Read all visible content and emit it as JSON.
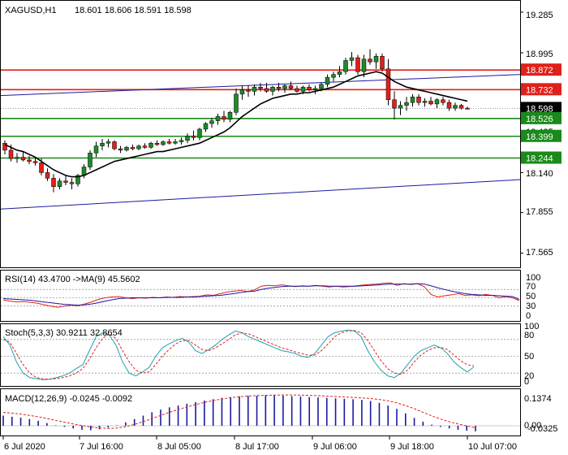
{
  "header": {
    "symbol_timeframe": "XAGUSD,H1",
    "ohlc": "18.601 18.606 18.591 18.598"
  },
  "colors": {
    "bull": "#1e8a2a",
    "bear": "#e0201a",
    "ma": "#000000",
    "resistance": "#e0201a",
    "support": "#1a8a1a",
    "channel": "#1a1aa0",
    "rsi": "#e0201a",
    "rsi_ma": "#1a1aa0",
    "stoch_main": "#20a0b0",
    "stoch_signal": "#e0201a",
    "macd_hist": "#1a1aa0",
    "macd_signal": "#e0201a",
    "current_label_bg": "#000000"
  },
  "price_panel": {
    "axis_labels": [
      "19.285",
      "18.995",
      "18.425",
      "18.140",
      "17.855",
      "17.565"
    ],
    "level_labels": [
      {
        "text": "18.872",
        "value": 18.872,
        "kind": "resistance"
      },
      {
        "text": "18.732",
        "value": 18.732,
        "kind": "resistance"
      },
      {
        "text": "18.598",
        "value": 18.598,
        "kind": "current"
      },
      {
        "text": "18.526",
        "value": 18.526,
        "kind": "support"
      },
      {
        "text": "18.399",
        "value": 18.399,
        "kind": "support"
      },
      {
        "text": "18.244",
        "value": 18.244,
        "kind": "support"
      }
    ]
  },
  "rsi_panel": {
    "label": "RSI(14) 43.4700  ->MA(9) 45.5602",
    "axis_labels": [
      "100",
      "70",
      "50",
      "30",
      "0"
    ]
  },
  "stoch_panel": {
    "label": "Stoch(5,3,3) 30.9211 32.8654",
    "axis_labels": [
      "100",
      "80",
      "50",
      "20",
      "0"
    ]
  },
  "macd_panel": {
    "label": "MACD(12,26,9) -0.0245 -0.0092",
    "axis_labels": [
      "0.1374",
      "0.00",
      "-0.0325"
    ]
  },
  "time_axis": [
    "6 Jul 2020",
    "7 Jul 16:00",
    "8 Jul 05:00",
    "8 Jul 17:00",
    "9 Jul 06:00",
    "9 Jul 18:00",
    "10 Jul 07:00"
  ],
  "chart_data": {
    "type": "candlestick",
    "y_axis_range": [
      17.47,
      19.36
    ],
    "candles": [
      [
        18.35,
        18.37,
        18.27,
        18.3
      ],
      [
        18.3,
        18.34,
        18.22,
        18.24
      ],
      [
        18.24,
        18.28,
        18.21,
        18.25
      ],
      [
        18.25,
        18.29,
        18.22,
        18.23
      ],
      [
        18.23,
        18.26,
        18.2,
        18.22
      ],
      [
        18.22,
        18.25,
        18.19,
        18.21
      ],
      [
        18.21,
        18.24,
        18.12,
        18.14
      ],
      [
        18.14,
        18.17,
        18.08,
        18.1
      ],
      [
        18.1,
        18.13,
        18.0,
        18.04
      ],
      [
        18.04,
        18.1,
        18.02,
        18.08
      ],
      [
        18.08,
        18.12,
        18.05,
        18.07
      ],
      [
        18.07,
        18.1,
        18.02,
        18.06
      ],
      [
        18.06,
        18.13,
        18.04,
        18.12
      ],
      [
        18.12,
        18.2,
        18.1,
        18.18
      ],
      [
        18.18,
        18.3,
        18.16,
        18.28
      ],
      [
        18.28,
        18.36,
        18.25,
        18.33
      ],
      [
        18.33,
        18.38,
        18.3,
        18.35
      ],
      [
        18.35,
        18.38,
        18.32,
        18.36
      ],
      [
        18.36,
        18.37,
        18.3,
        18.31
      ],
      [
        18.31,
        18.33,
        18.28,
        18.3
      ],
      [
        18.3,
        18.33,
        18.29,
        18.32
      ],
      [
        18.32,
        18.34,
        18.3,
        18.31
      ],
      [
        18.31,
        18.34,
        18.3,
        18.33
      ],
      [
        18.33,
        18.35,
        18.31,
        18.32
      ],
      [
        18.32,
        18.36,
        18.31,
        18.35
      ],
      [
        18.35,
        18.37,
        18.33,
        18.34
      ],
      [
        18.34,
        18.37,
        18.33,
        18.36
      ],
      [
        18.36,
        18.38,
        18.34,
        18.35
      ],
      [
        18.35,
        18.38,
        18.34,
        18.36
      ],
      [
        18.36,
        18.39,
        18.34,
        18.37
      ],
      [
        18.37,
        18.42,
        18.35,
        18.4
      ],
      [
        18.4,
        18.44,
        18.37,
        18.39
      ],
      [
        18.39,
        18.46,
        18.37,
        18.45
      ],
      [
        18.45,
        18.5,
        18.43,
        18.49
      ],
      [
        18.49,
        18.53,
        18.46,
        18.51
      ],
      [
        18.51,
        18.56,
        18.48,
        18.54
      ],
      [
        18.54,
        18.58,
        18.5,
        18.52
      ],
      [
        18.52,
        18.58,
        18.5,
        18.57
      ],
      [
        18.57,
        18.74,
        18.55,
        18.7
      ],
      [
        18.7,
        18.76,
        18.66,
        18.73
      ],
      [
        18.73,
        18.76,
        18.68,
        18.72
      ],
      [
        18.72,
        18.77,
        18.69,
        18.75
      ],
      [
        18.75,
        18.78,
        18.72,
        18.74
      ],
      [
        18.74,
        18.78,
        18.71,
        18.72
      ],
      [
        18.72,
        18.76,
        18.69,
        18.75
      ],
      [
        18.75,
        18.78,
        18.72,
        18.74
      ],
      [
        18.74,
        18.77,
        18.71,
        18.76
      ],
      [
        18.76,
        18.79,
        18.73,
        18.74
      ],
      [
        18.74,
        18.76,
        18.71,
        18.72
      ],
      [
        18.72,
        18.76,
        18.7,
        18.75
      ],
      [
        18.75,
        18.77,
        18.72,
        18.73
      ],
      [
        18.73,
        18.76,
        18.7,
        18.74
      ],
      [
        18.74,
        18.78,
        18.72,
        18.77
      ],
      [
        18.77,
        18.84,
        18.75,
        18.82
      ],
      [
        18.82,
        18.86,
        18.79,
        18.84
      ],
      [
        18.84,
        18.9,
        18.82,
        18.86
      ],
      [
        18.86,
        18.96,
        18.84,
        18.94
      ],
      [
        18.94,
        19.0,
        18.9,
        18.96
      ],
      [
        18.96,
        18.98,
        18.84,
        18.86
      ],
      [
        18.86,
        18.98,
        18.82,
        18.95
      ],
      [
        18.95,
        19.02,
        18.91,
        18.93
      ],
      [
        18.93,
        18.99,
        18.88,
        18.97
      ],
      [
        18.97,
        18.99,
        18.86,
        18.88
      ],
      [
        18.88,
        18.95,
        18.62,
        18.66
      ],
      [
        18.66,
        18.72,
        18.52,
        18.6
      ],
      [
        18.6,
        18.65,
        18.55,
        18.62
      ],
      [
        18.62,
        18.68,
        18.58,
        18.64
      ],
      [
        18.64,
        18.7,
        18.61,
        18.68
      ],
      [
        18.68,
        18.7,
        18.62,
        18.64
      ],
      [
        18.64,
        18.67,
        18.61,
        18.65
      ],
      [
        18.65,
        18.68,
        18.62,
        18.63
      ],
      [
        18.63,
        18.67,
        18.6,
        18.66
      ],
      [
        18.66,
        18.68,
        18.62,
        18.64
      ],
      [
        18.64,
        18.66,
        18.58,
        18.6
      ],
      [
        18.6,
        18.64,
        18.58,
        18.62
      ],
      [
        18.62,
        18.63,
        18.59,
        18.6
      ],
      [
        18.6,
        18.61,
        18.59,
        18.598
      ]
    ],
    "moving_average": [
      18.34,
      18.32,
      18.3,
      18.29,
      18.27,
      18.25,
      18.22,
      18.19,
      18.16,
      18.14,
      18.12,
      18.11,
      18.11,
      18.12,
      18.14,
      18.16,
      18.18,
      18.2,
      18.22,
      18.23,
      18.24,
      18.25,
      18.26,
      18.27,
      18.28,
      18.29,
      18.29,
      18.3,
      18.31,
      18.32,
      18.33,
      18.34,
      18.35,
      18.37,
      18.39,
      18.41,
      18.43,
      18.46,
      18.5,
      18.54,
      18.57,
      18.6,
      18.63,
      18.65,
      18.67,
      18.68,
      18.69,
      18.7,
      18.7,
      18.71,
      18.71,
      18.72,
      18.73,
      18.74,
      18.75,
      18.77,
      18.79,
      18.81,
      18.83,
      18.84,
      18.85,
      18.86,
      18.85,
      18.82,
      18.79,
      18.77,
      18.75,
      18.74,
      18.73,
      18.72,
      18.71,
      18.7,
      18.69,
      18.68,
      18.67,
      18.66,
      18.65
    ],
    "rsi": [
      45,
      42,
      40,
      41,
      39,
      37,
      33,
      30,
      27,
      30,
      32,
      31,
      35,
      40,
      46,
      50,
      52,
      53,
      50,
      48,
      50,
      49,
      51,
      50,
      52,
      51,
      53,
      52,
      53,
      54,
      57,
      56,
      60,
      64,
      66,
      68,
      65,
      69,
      78,
      80,
      79,
      81,
      79,
      77,
      79,
      78,
      80,
      78,
      76,
      78,
      76,
      77,
      79,
      81,
      82,
      83,
      85,
      86,
      80,
      84,
      82,
      84,
      77,
      58,
      52,
      55,
      57,
      60,
      56,
      57,
      55,
      58,
      56,
      50,
      53,
      50,
      43
    ],
    "rsi_ma": [
      48,
      47,
      46,
      45,
      44,
      42,
      40,
      38,
      36,
      34,
      33,
      32,
      33,
      35,
      38,
      42,
      45,
      48,
      49,
      50,
      50,
      50,
      50,
      50,
      51,
      51,
      51,
      52,
      52,
      53,
      54,
      55,
      56,
      58,
      60,
      63,
      65,
      66,
      70,
      73,
      75,
      77,
      78,
      78,
      78,
      78,
      79,
      79,
      78,
      78,
      78,
      78,
      78,
      79,
      80,
      81,
      82,
      83,
      83,
      83,
      83,
      84,
      83,
      79,
      74,
      70,
      66,
      63,
      60,
      58,
      57,
      56,
      56,
      55,
      54,
      53,
      46
    ],
    "stoch_main": [
      85,
      70,
      40,
      20,
      12,
      10,
      8,
      9,
      12,
      15,
      20,
      28,
      35,
      60,
      85,
      92,
      88,
      70,
      40,
      20,
      15,
      22,
      30,
      50,
      65,
      72,
      78,
      82,
      75,
      60,
      55,
      62,
      70,
      80,
      88,
      95,
      92,
      85,
      80,
      75,
      70,
      65,
      60,
      58,
      55,
      50,
      48,
      55,
      70,
      85,
      92,
      95,
      97,
      95,
      85,
      60,
      40,
      25,
      15,
      12,
      20,
      35,
      50,
      60,
      65,
      70,
      65,
      55,
      40,
      30,
      22,
      31
    ],
    "stoch_signal": [
      80,
      75,
      55,
      35,
      20,
      12,
      10,
      9,
      10,
      12,
      15,
      20,
      28,
      45,
      65,
      82,
      90,
      82,
      60,
      40,
      25,
      20,
      22,
      35,
      50,
      62,
      72,
      78,
      78,
      70,
      62,
      60,
      65,
      72,
      80,
      88,
      92,
      90,
      85,
      80,
      75,
      70,
      65,
      62,
      58,
      55,
      52,
      52,
      60,
      72,
      85,
      92,
      95,
      96,
      92,
      78,
      60,
      42,
      28,
      20,
      18,
      25,
      40,
      52,
      60,
      65,
      66,
      62,
      52,
      42,
      35,
      33
    ],
    "macd_hist": [
      0.045,
      0.04,
      0.036,
      0.03,
      0.022,
      0.012,
      0.002,
      -0.005,
      -0.012,
      -0.018,
      -0.02,
      -0.016,
      -0.008,
      0.002,
      0.015,
      0.03,
      0.045,
      0.06,
      0.072,
      0.082,
      0.09,
      0.098,
      0.105,
      0.112,
      0.118,
      0.124,
      0.128,
      0.131,
      0.133,
      0.134,
      0.1374,
      0.136,
      0.134,
      0.132,
      0.13,
      0.128,
      0.126,
      0.124,
      0.122,
      0.12,
      0.118,
      0.115,
      0.11,
      0.102,
      0.09,
      0.075,
      0.055,
      0.035,
      0.018,
      0.005,
      -0.005,
      -0.012,
      -0.018,
      -0.022,
      -0.0245
    ],
    "macd_signal": [
      0.06,
      0.056,
      0.052,
      0.046,
      0.04,
      0.032,
      0.024,
      0.016,
      0.008,
      0.001,
      -0.006,
      -0.01,
      -0.012,
      -0.01,
      -0.004,
      0.006,
      0.018,
      0.032,
      0.046,
      0.06,
      0.072,
      0.084,
      0.094,
      0.104,
      0.112,
      0.119,
      0.125,
      0.129,
      0.132,
      0.134,
      0.135,
      0.1365,
      0.137,
      0.137,
      0.136,
      0.135,
      0.134,
      0.132,
      0.13,
      0.128,
      0.126,
      0.124,
      0.121,
      0.117,
      0.111,
      0.102,
      0.09,
      0.076,
      0.06,
      0.044,
      0.03,
      0.018,
      0.008,
      -0.001,
      -0.0092
    ]
  }
}
